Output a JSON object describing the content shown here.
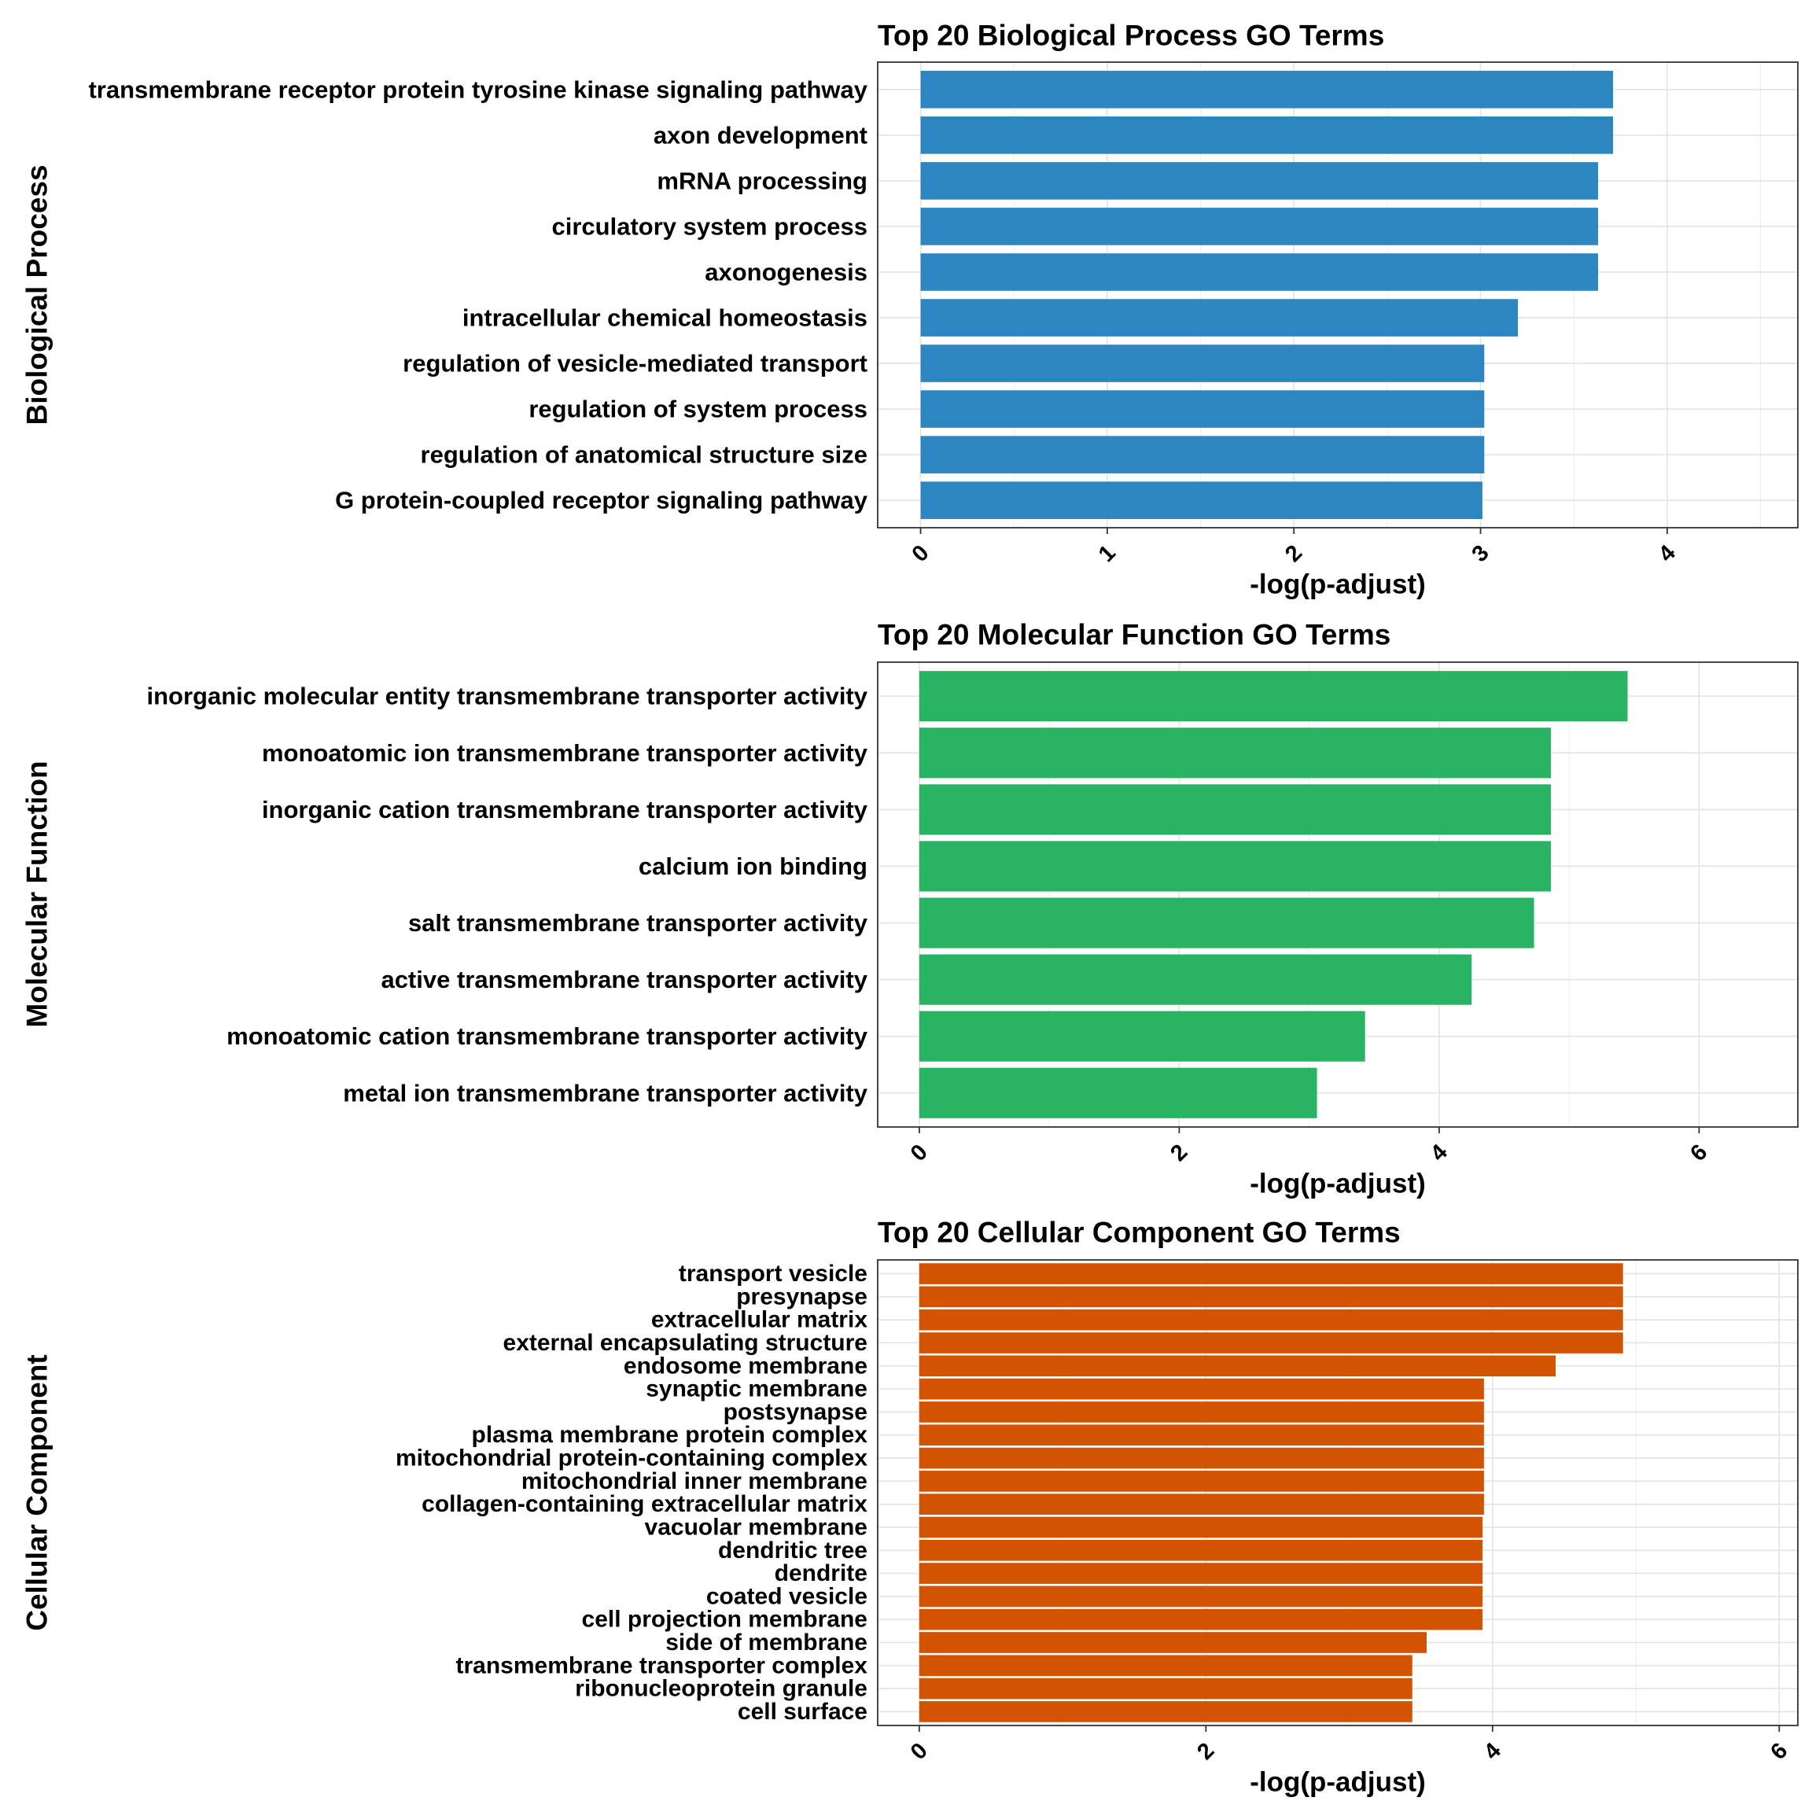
{
  "chart_data": [
    {
      "type": "bar",
      "orientation": "horizontal",
      "title": "Top 20 Biological Process GO Terms",
      "xlabel": "-log(p-adjust)",
      "ylabel": "Biological Process",
      "color": "#2E86C1",
      "xlim": [
        -0.23,
        4.7
      ],
      "xticks": [
        0,
        1,
        2,
        3,
        4
      ],
      "grid": true,
      "categories": [
        "transmembrane receptor protein tyrosine kinase signaling pathway",
        "axon development",
        "mRNA processing",
        "circulatory system process",
        "axonogenesis",
        "intracellular chemical homeostasis",
        "regulation of vesicle-mediated transport",
        "regulation of system process",
        "regulation of anatomical structure size",
        "G protein-coupled receptor signaling pathway"
      ],
      "values": [
        3.71,
        3.71,
        3.63,
        3.63,
        3.63,
        3.2,
        3.02,
        3.02,
        3.02,
        3.01
      ]
    },
    {
      "type": "bar",
      "orientation": "horizontal",
      "title": "Top 20 Molecular Function GO Terms",
      "xlabel": "-log(p-adjust)",
      "ylabel": "Molecular Function",
      "color": "#28B463",
      "xlim": [
        -0.32,
        6.76
      ],
      "xticks": [
        0,
        2,
        4,
        6
      ],
      "grid": true,
      "categories": [
        "inorganic molecular entity transmembrane transporter activity",
        "monoatomic ion transmembrane transporter activity",
        "inorganic cation transmembrane transporter activity",
        "calcium ion binding",
        "salt transmembrane transporter activity",
        "active transmembrane transporter activity",
        "monoatomic cation transmembrane transporter activity",
        "metal ion transmembrane transporter activity"
      ],
      "values": [
        5.45,
        4.86,
        4.86,
        4.86,
        4.73,
        4.25,
        3.43,
        3.06
      ]
    },
    {
      "type": "bar",
      "orientation": "horizontal",
      "title": "Top 20 Cellular Component GO Terms",
      "xlabel": "-log(p-adjust)",
      "ylabel": "Cellular Component",
      "color": "#D35400",
      "xlim": [
        -0.29,
        6.13
      ],
      "xticks": [
        0,
        2,
        4,
        6
      ],
      "grid": true,
      "categories": [
        "transport vesicle",
        "presynapse",
        "extracellular matrix",
        "external encapsulating structure",
        "endosome membrane",
        "synaptic membrane",
        "postsynapse",
        "plasma membrane protein complex",
        "mitochondrial protein-containing complex",
        "mitochondrial inner membrane",
        "collagen-containing extracellular matrix",
        "vacuolar membrane",
        "dendritic tree",
        "dendrite",
        "coated vesicle",
        "cell projection membrane",
        "side of membrane",
        "transmembrane transporter complex",
        "ribonucleoprotein granule",
        "cell surface"
      ],
      "values": [
        4.91,
        4.91,
        4.91,
        4.91,
        4.44,
        3.94,
        3.94,
        3.94,
        3.94,
        3.94,
        3.94,
        3.93,
        3.93,
        3.93,
        3.93,
        3.93,
        3.54,
        3.44,
        3.44,
        3.44
      ]
    }
  ]
}
